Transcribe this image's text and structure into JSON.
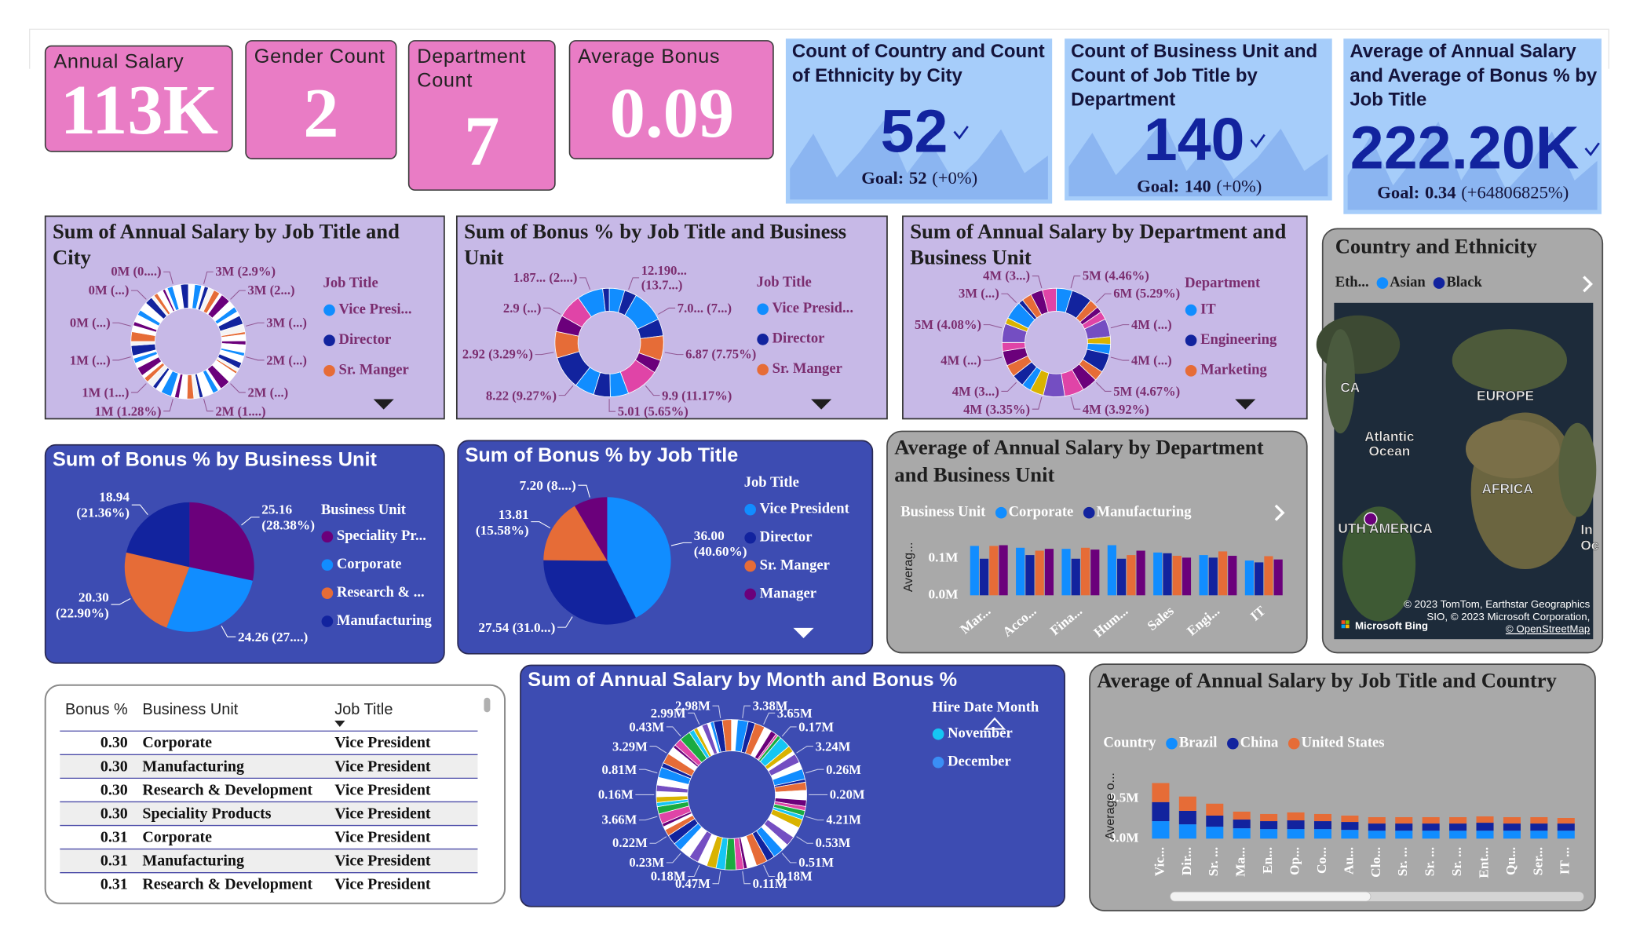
{
  "cards": [
    {
      "title": "Annual Salary",
      "value": "113K"
    },
    {
      "title": "Gender Count",
      "value": "2"
    },
    {
      "title": "Department Count",
      "value": "7"
    },
    {
      "title": "Average Bonus",
      "value": "0.09"
    }
  ],
  "kpis": [
    {
      "title": "Count of Country and Count of Ethnicity by City",
      "value": "52",
      "goal_label": "Goal:",
      "goal": "52",
      "change": "(+0%)"
    },
    {
      "title": "Count of Business Unit and Count of Job Title by Department",
      "value": "140",
      "goal_label": "Goal:",
      "goal": "140",
      "change": "(+0%)"
    },
    {
      "title": "Average of Annual Salary and Average of Bonus % by Job Title",
      "value": "222.20K",
      "goal_label": "Goal:",
      "goal": "0.34",
      "change": "(+64806825%)"
    }
  ],
  "chart_data": [
    {
      "type": "donut",
      "title": "Sum of Annual Salary by Job Title and City",
      "legend_title": "Job Title",
      "legend": [
        {
          "name": "Vice Presi...",
          "color": "#118dff"
        },
        {
          "name": "Director",
          "color": "#12239e"
        },
        {
          "name": "Sr. Manger",
          "color": "#e66c37"
        }
      ],
      "labels": [
        "3M (2.9%)",
        "3M (2...)",
        "3M (...)",
        "2M (...)",
        "2M (...)",
        "2M (1....)",
        "1M (1.28%)",
        "1M (1...)",
        "1M (...)",
        "0M (...)",
        "0M (...)",
        "0M (0....)"
      ]
    },
    {
      "type": "donut",
      "title": "Sum of Bonus % by Job Title and Business Unit",
      "legend_title": "Job Title",
      "legend": [
        {
          "name": "Vice Presid...",
          "color": "#118dff"
        },
        {
          "name": "Director",
          "color": "#12239e"
        },
        {
          "name": "Sr. Manger",
          "color": "#e66c37"
        }
      ],
      "labels": [
        "12.190... (13.7...)",
        "7.0... (7...)",
        "6.87 (7.75%)",
        "9.9 (11.17%)",
        "5.01 (5.65%)",
        "8.22 (9.27%)",
        "2.92 (3.29%)",
        "2.9 (...)",
        "1.87... (2....)"
      ]
    },
    {
      "type": "donut",
      "title": "Sum of Annual Salary by Department and Business Unit",
      "legend_title": "Department",
      "legend": [
        {
          "name": "IT",
          "color": "#118dff"
        },
        {
          "name": "Engineering",
          "color": "#12239e"
        },
        {
          "name": "Marketing",
          "color": "#e66c37"
        }
      ],
      "labels": [
        "5M (4.46%)",
        "6M (5.29%)",
        "4M (...)",
        "4M (...)",
        "5M (4.67%)",
        "4M (3.92%)",
        "4M (3.35%)",
        "4M (3...)",
        "4M (...)",
        "5M (4.08%)",
        "3M (...)",
        "4M (3...)"
      ]
    },
    {
      "type": "pie",
      "title": "Sum of Bonus % by Business Unit",
      "legend_title": "Business Unit",
      "categories": [
        "Speciality Pr...",
        "Corporate",
        "Research & ...",
        "Manufacturing"
      ],
      "values": [
        25.16,
        24.26,
        20.3,
        18.94
      ],
      "value_labels": [
        "25.16 (28.38%)",
        "24.26 (27....)",
        "20.30 (22.90%)",
        "18.94 (21.36%)"
      ],
      "colors": [
        "#6b007b",
        "#118dff",
        "#e66c37",
        "#12239e"
      ]
    },
    {
      "type": "pie",
      "title": "Sum of Bonus % by Job Title",
      "legend_title": "Job Title",
      "categories": [
        "Vice President",
        "Director",
        "Sr. Manger",
        "Manager"
      ],
      "values": [
        36.0,
        27.54,
        13.81,
        7.2
      ],
      "value_labels": [
        "36.00 (40.60%)",
        "27.54 (31.0...)",
        "13.81 (15.58%)",
        "7.20 (8....)"
      ],
      "colors": [
        "#118dff",
        "#12239e",
        "#e66c37",
        "#6b007b"
      ]
    },
    {
      "type": "bar",
      "title": "Average of Annual Salary by Department and Business Unit",
      "legend_title": "Business Unit",
      "y_label": "Averag...",
      "stacked": false,
      "categories": [
        "Mar...",
        "Acco...",
        "Fina...",
        "Hum...",
        "Sales",
        "Engi...",
        "IT"
      ],
      "series": [
        {
          "name": "Corporate",
          "color": "#118dff",
          "values": [
            135000,
            130000,
            127000,
            137000,
            117000,
            110000,
            95000
          ]
        },
        {
          "name": "Manufacturing",
          "color": "#12239e",
          "values": [
            100000,
            110000,
            100000,
            100000,
            115000,
            103000,
            90000
          ]
        },
        {
          "name": null,
          "color": "#e66c37",
          "values": [
            135000,
            122000,
            130000,
            110000,
            108000,
            120000,
            107000
          ]
        },
        {
          "name": null,
          "color": "#6b007b",
          "values": [
            137000,
            127000,
            125000,
            122000,
            103000,
            108000,
            98000
          ]
        }
      ],
      "ylim": [
        0,
        150000
      ],
      "yticks": [
        {
          "value": 0,
          "label": "0.0M"
        },
        {
          "value": 100000,
          "label": "0.1M"
        }
      ]
    },
    {
      "type": "donut",
      "title": "Sum of Annual Salary by Month and Bonus %",
      "legend_title": "Hire Date Month",
      "legend": [
        {
          "name": "November",
          "color": "#15c6f4"
        },
        {
          "name": "December",
          "color": "#3a8ef5"
        }
      ],
      "labels": [
        "3.38M",
        "3.65M",
        "0.17M",
        "3.24M",
        "0.26M",
        "0.20M",
        "4.21M",
        "0.53M",
        "0.51M",
        "0.18M",
        "0.11M",
        "0.47M",
        "0.18M",
        "0.23M",
        "0.22M",
        "3.66M",
        "0.16M",
        "0.81M",
        "3.29M",
        "0.43M",
        "2.99M",
        "2.98M"
      ]
    },
    {
      "type": "bar",
      "title": "Average of Annual Salary by Job Title and Country",
      "legend_title": "Country",
      "y_label": "Average o...",
      "stacked": true,
      "categories": [
        "Vic...",
        "Dir...",
        "Sr. ...",
        "Ma...",
        "En...",
        "Op...",
        "Co...",
        "Au...",
        "Clo...",
        "Sr. ...",
        "Sr. ...",
        "Sr. ...",
        "Ent...",
        "Qu...",
        "Ser...",
        "IT ..."
      ],
      "series": [
        {
          "name": "Brazil",
          "color": "#118dff",
          "values": [
            220000,
            180000,
            150000,
            130000,
            120000,
            120000,
            120000,
            110000,
            100000,
            100000,
            100000,
            100000,
            100000,
            100000,
            100000,
            100000
          ]
        },
        {
          "name": "China",
          "color": "#12239e",
          "values": [
            240000,
            170000,
            140000,
            110000,
            100000,
            110000,
            100000,
            100000,
            90000,
            90000,
            90000,
            90000,
            100000,
            90000,
            90000,
            90000
          ]
        },
        {
          "name": "United States",
          "color": "#e66c37",
          "values": [
            240000,
            180000,
            150000,
            100000,
            90000,
            100000,
            90000,
            80000,
            80000,
            80000,
            80000,
            80000,
            80000,
            80000,
            80000,
            70000
          ]
        }
      ],
      "ylim": [
        0,
        800000
      ],
      "yticks": [
        {
          "value": 0,
          "label": "0.0M"
        },
        {
          "value": 500000,
          "label": "0.5M"
        }
      ]
    }
  ],
  "map": {
    "title": "Country and Ethnicity",
    "legend_title": "Eth...",
    "legend": [
      {
        "name": "Asian",
        "color": "#118dff"
      },
      {
        "name": "Black",
        "color": "#12239e"
      }
    ],
    "labels": [
      "CA",
      "EUROPE",
      "Atlantic",
      "Ocean",
      "AFRICA",
      "UTH AMERICA",
      "In",
      "Oc"
    ],
    "attribution": [
      "© 2023 TomTom, Earthstar Geographics",
      "SIO, © 2023 Microsoft Corporation,",
      "© OpenStreetMap"
    ],
    "logo": "Microsoft Bing"
  },
  "table": {
    "columns": [
      "Bonus %",
      "Business Unit",
      "Job Title"
    ],
    "rows": [
      [
        "0.30",
        "Corporate",
        "Vice President"
      ],
      [
        "0.30",
        "Manufacturing",
        "Vice President"
      ],
      [
        "0.30",
        "Research & Development",
        "Vice President"
      ],
      [
        "0.30",
        "Speciality Products",
        "Vice President"
      ],
      [
        "0.31",
        "Corporate",
        "Vice President"
      ],
      [
        "0.31",
        "Manufacturing",
        "Vice President"
      ],
      [
        "0.31",
        "Research & Development",
        "Vice President"
      ]
    ]
  }
}
